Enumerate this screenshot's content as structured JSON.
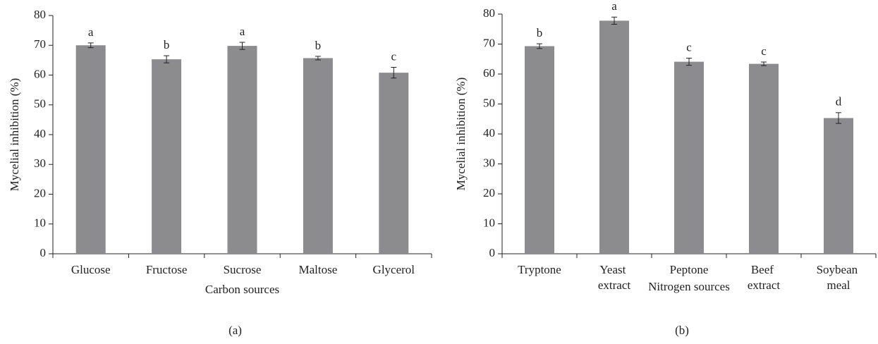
{
  "chart_data": [
    {
      "type": "bar",
      "panel_label": "(a)",
      "xlabel": "Carbon sources",
      "ylabel": "Mycelial inhibition (%)",
      "categories": [
        "Glucose",
        "Fructose",
        "Sucrose",
        "Maltose",
        "Glycerol"
      ],
      "values": [
        70,
        65.3,
        69.8,
        65.7,
        60.8
      ],
      "errors": [
        0.8,
        1.2,
        1.2,
        0.6,
        1.8
      ],
      "annotations": [
        "a",
        "b",
        "a",
        "b",
        "c"
      ],
      "color": "#8c8c8f",
      "ylim": [
        0,
        80
      ],
      "yticks": [
        0,
        10,
        20,
        30,
        40,
        50,
        60,
        70,
        80
      ]
    },
    {
      "type": "bar",
      "panel_label": "(b)",
      "xlabel": "Nitrogen sources",
      "ylabel": "Mycelial inhibition (%)",
      "categories": [
        "Tryptone",
        "Yeast extract",
        "Peptone",
        "Beef extract",
        "Soybean meal"
      ],
      "values": [
        69.3,
        77.8,
        64.1,
        63.4,
        45.3
      ],
      "errors": [
        0.8,
        1.2,
        1.2,
        0.6,
        1.8
      ],
      "annotations": [
        "b",
        "a",
        "c",
        "c",
        "d"
      ],
      "color": "#8c8c8f",
      "ylim": [
        0,
        80
      ],
      "yticks": [
        0,
        10,
        20,
        30,
        40,
        50,
        60,
        70,
        80
      ]
    }
  ]
}
